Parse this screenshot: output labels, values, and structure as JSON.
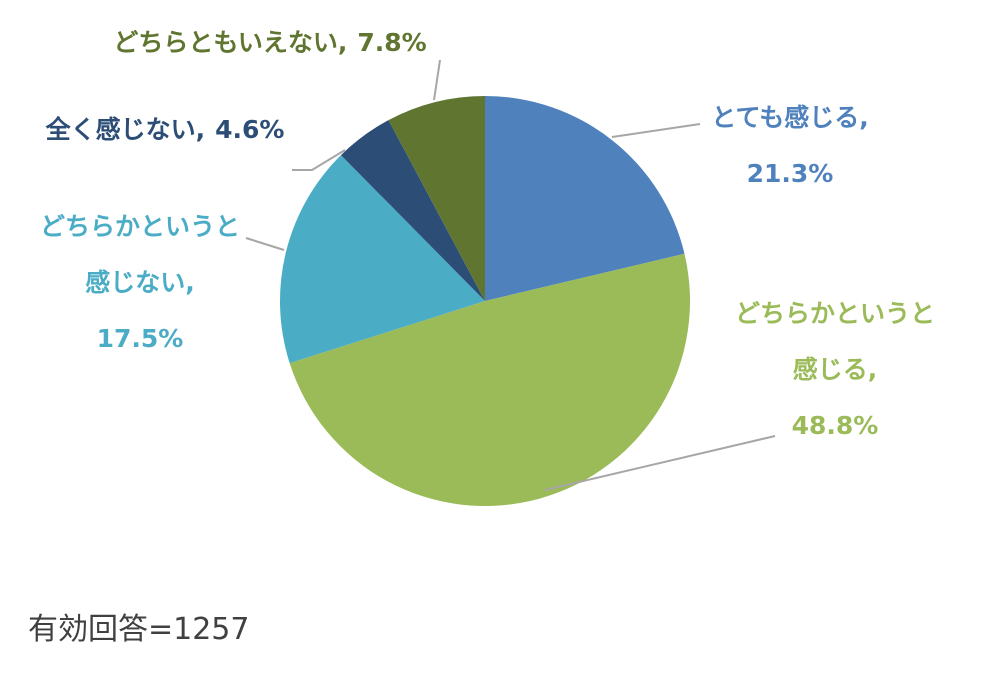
{
  "chart_data": {
    "type": "pie",
    "categories": [
      "とても感じる",
      "どちらかというと感じる",
      "どちらかというと感じない",
      "全く感じない",
      "どちらともいえない"
    ],
    "values": [
      21.3,
      48.8,
      17.5,
      4.6,
      7.8
    ],
    "value_labels": [
      "21.3%",
      "48.8%",
      "17.5%",
      "4.6%",
      "7.8%"
    ],
    "label_separator": ",",
    "colors": [
      "#4f81bd",
      "#9bbb59",
      "#4bacc6",
      "#2c4d75",
      "#5f7530"
    ],
    "note": "有効回答=1257"
  }
}
